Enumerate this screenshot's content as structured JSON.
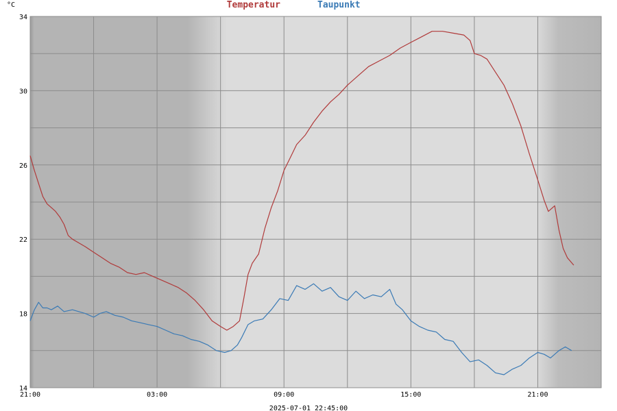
{
  "chart_data": {
    "type": "line",
    "title_parts": [
      {
        "text": "Temperatur",
        "color": "#b03a3a"
      },
      {
        "text": "Taupunkt",
        "color": "#3a7ab5"
      }
    ],
    "ylabel": "°C",
    "xlabel": "2025-07-01 22:45:00",
    "ylim": [
      14,
      34
    ],
    "yticks_labeled": [
      14,
      18,
      22,
      26,
      30,
      34
    ],
    "yticks_grid": [
      14,
      16,
      18,
      20,
      22,
      24,
      26,
      28,
      30,
      32,
      34
    ],
    "x_range_hours": [
      21,
      48
    ],
    "xticks": [
      {
        "h": 21,
        "label": "21:00"
      },
      {
        "h": 27,
        "label": "03:00"
      },
      {
        "h": 33,
        "label": "09:00"
      },
      {
        "h": 39,
        "label": "15:00"
      },
      {
        "h": 45,
        "label": "21:00"
      }
    ],
    "x_grid_hours": [
      21,
      24,
      27,
      30,
      33,
      36,
      39,
      42,
      45,
      48
    ],
    "night_shading": [
      [
        21,
        30.3
      ],
      [
        44.9,
        48
      ]
    ],
    "grid": true,
    "series": [
      {
        "name": "Temperatur",
        "color": "#b03a3a",
        "points": [
          [
            21.0,
            26.5
          ],
          [
            21.2,
            25.7
          ],
          [
            21.4,
            25.0
          ],
          [
            21.6,
            24.3
          ],
          [
            21.8,
            23.9
          ],
          [
            22.0,
            23.7
          ],
          [
            22.2,
            23.5
          ],
          [
            22.4,
            23.2
          ],
          [
            22.6,
            22.8
          ],
          [
            22.8,
            22.2
          ],
          [
            23.0,
            22.0
          ],
          [
            23.3,
            21.8
          ],
          [
            23.6,
            21.6
          ],
          [
            24.0,
            21.3
          ],
          [
            24.4,
            21.0
          ],
          [
            24.8,
            20.7
          ],
          [
            25.2,
            20.5
          ],
          [
            25.6,
            20.2
          ],
          [
            26.0,
            20.1
          ],
          [
            26.4,
            20.2
          ],
          [
            26.8,
            20.0
          ],
          [
            27.2,
            19.8
          ],
          [
            27.6,
            19.6
          ],
          [
            28.0,
            19.4
          ],
          [
            28.4,
            19.1
          ],
          [
            28.8,
            18.7
          ],
          [
            29.2,
            18.2
          ],
          [
            29.6,
            17.6
          ],
          [
            30.0,
            17.3
          ],
          [
            30.3,
            17.1
          ],
          [
            30.6,
            17.3
          ],
          [
            30.9,
            17.6
          ],
          [
            31.1,
            18.8
          ],
          [
            31.3,
            20.1
          ],
          [
            31.5,
            20.7
          ],
          [
            31.8,
            21.2
          ],
          [
            32.1,
            22.6
          ],
          [
            32.4,
            23.7
          ],
          [
            32.7,
            24.6
          ],
          [
            33.0,
            25.7
          ],
          [
            33.3,
            26.4
          ],
          [
            33.6,
            27.1
          ],
          [
            34.0,
            27.6
          ],
          [
            34.4,
            28.3
          ],
          [
            34.8,
            28.9
          ],
          [
            35.2,
            29.4
          ],
          [
            35.6,
            29.8
          ],
          [
            36.0,
            30.3
          ],
          [
            36.5,
            30.8
          ],
          [
            37.0,
            31.3
          ],
          [
            37.5,
            31.6
          ],
          [
            38.0,
            31.9
          ],
          [
            38.5,
            32.3
          ],
          [
            39.0,
            32.6
          ],
          [
            39.5,
            32.9
          ],
          [
            40.0,
            33.2
          ],
          [
            40.5,
            33.2
          ],
          [
            41.0,
            33.1
          ],
          [
            41.5,
            33.0
          ],
          [
            41.8,
            32.7
          ],
          [
            42.0,
            32.0
          ],
          [
            42.3,
            31.9
          ],
          [
            42.6,
            31.7
          ],
          [
            43.0,
            31.0
          ],
          [
            43.4,
            30.3
          ],
          [
            43.8,
            29.3
          ],
          [
            44.2,
            28.1
          ],
          [
            44.6,
            26.6
          ],
          [
            45.0,
            25.2
          ],
          [
            45.3,
            24.1
          ],
          [
            45.5,
            23.5
          ],
          [
            45.8,
            23.8
          ],
          [
            46.0,
            22.5
          ],
          [
            46.2,
            21.5
          ],
          [
            46.4,
            21.0
          ],
          [
            46.7,
            20.6
          ]
        ]
      },
      {
        "name": "Taupunkt",
        "color": "#3a7ab5",
        "points": [
          [
            21.0,
            17.6
          ],
          [
            21.2,
            18.2
          ],
          [
            21.4,
            18.6
          ],
          [
            21.6,
            18.3
          ],
          [
            21.8,
            18.3
          ],
          [
            22.0,
            18.2
          ],
          [
            22.3,
            18.4
          ],
          [
            22.6,
            18.1
          ],
          [
            23.0,
            18.2
          ],
          [
            23.3,
            18.1
          ],
          [
            23.6,
            18.0
          ],
          [
            24.0,
            17.8
          ],
          [
            24.3,
            18.0
          ],
          [
            24.6,
            18.1
          ],
          [
            25.0,
            17.9
          ],
          [
            25.4,
            17.8
          ],
          [
            25.8,
            17.6
          ],
          [
            26.2,
            17.5
          ],
          [
            26.6,
            17.4
          ],
          [
            27.0,
            17.3
          ],
          [
            27.4,
            17.1
          ],
          [
            27.8,
            16.9
          ],
          [
            28.2,
            16.8
          ],
          [
            28.6,
            16.6
          ],
          [
            29.0,
            16.5
          ],
          [
            29.4,
            16.3
          ],
          [
            29.8,
            16.0
          ],
          [
            30.2,
            15.9
          ],
          [
            30.5,
            16.0
          ],
          [
            30.8,
            16.3
          ],
          [
            31.0,
            16.7
          ],
          [
            31.3,
            17.4
          ],
          [
            31.6,
            17.6
          ],
          [
            32.0,
            17.7
          ],
          [
            32.4,
            18.2
          ],
          [
            32.8,
            18.8
          ],
          [
            33.2,
            18.7
          ],
          [
            33.6,
            19.5
          ],
          [
            34.0,
            19.3
          ],
          [
            34.4,
            19.6
          ],
          [
            34.8,
            19.2
          ],
          [
            35.2,
            19.4
          ],
          [
            35.6,
            18.9
          ],
          [
            36.0,
            18.7
          ],
          [
            36.4,
            19.2
          ],
          [
            36.8,
            18.8
          ],
          [
            37.2,
            19.0
          ],
          [
            37.6,
            18.9
          ],
          [
            38.0,
            19.3
          ],
          [
            38.3,
            18.5
          ],
          [
            38.6,
            18.2
          ],
          [
            39.0,
            17.6
          ],
          [
            39.4,
            17.3
          ],
          [
            39.8,
            17.1
          ],
          [
            40.2,
            17.0
          ],
          [
            40.6,
            16.6
          ],
          [
            41.0,
            16.5
          ],
          [
            41.4,
            15.9
          ],
          [
            41.8,
            15.4
          ],
          [
            42.2,
            15.5
          ],
          [
            42.6,
            15.2
          ],
          [
            43.0,
            14.8
          ],
          [
            43.4,
            14.7
          ],
          [
            43.8,
            15.0
          ],
          [
            44.2,
            15.2
          ],
          [
            44.6,
            15.6
          ],
          [
            45.0,
            15.9
          ],
          [
            45.3,
            15.8
          ],
          [
            45.6,
            15.6
          ],
          [
            46.0,
            16.0
          ],
          [
            46.3,
            16.2
          ],
          [
            46.6,
            16.0
          ]
        ]
      }
    ]
  }
}
